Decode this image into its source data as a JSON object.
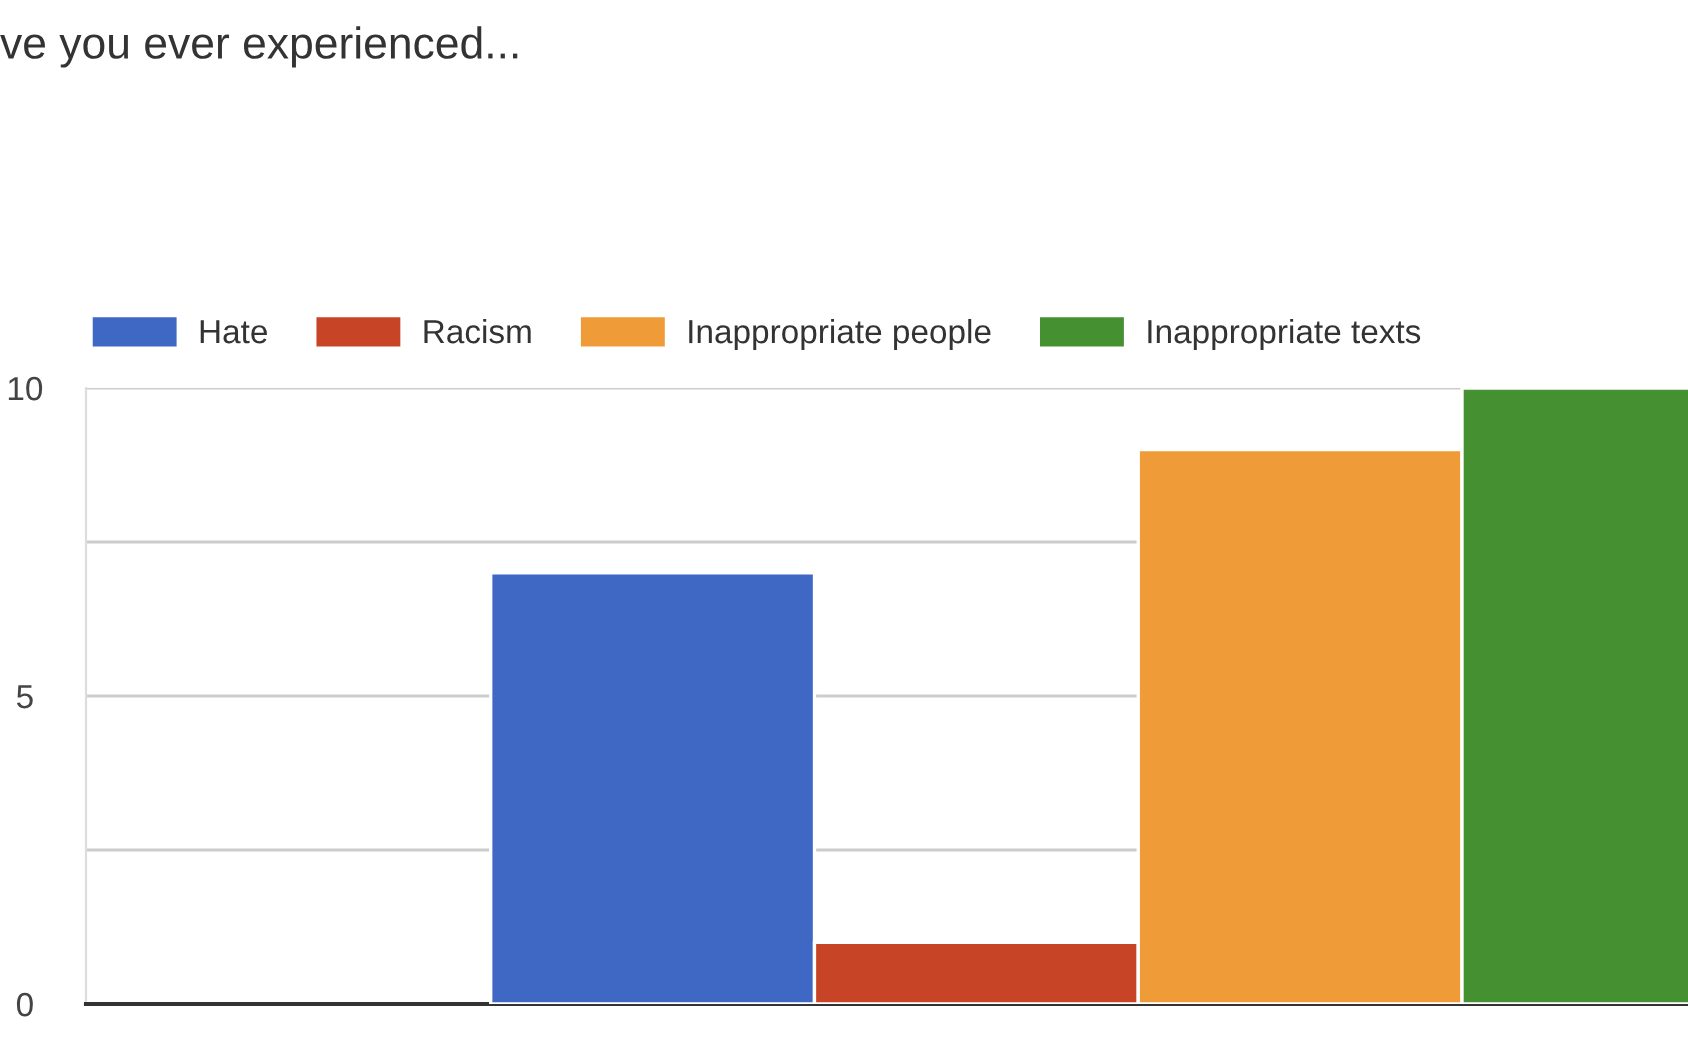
{
  "chart_data": {
    "type": "bar",
    "title": "ve you ever experienced...",
    "categories": [
      null
    ],
    "series": [
      {
        "name": "Hate",
        "color": "#3f67c4",
        "values": [
          7
        ]
      },
      {
        "name": "Racism",
        "color": "#c74427",
        "values": [
          1
        ]
      },
      {
        "name": "Inappropriate people",
        "color": "#ee9b38",
        "values": [
          9
        ]
      },
      {
        "name": "Inappropriate texts",
        "color": "#459030",
        "values": [
          10
        ]
      }
    ],
    "ylim": [
      0,
      10
    ],
    "yticks": [
      0,
      {
        "value": 2.5,
        "label": null
      },
      5,
      {
        "value": 7.5,
        "label": null
      },
      10
    ],
    "grid": "y",
    "legend": "top left"
  }
}
